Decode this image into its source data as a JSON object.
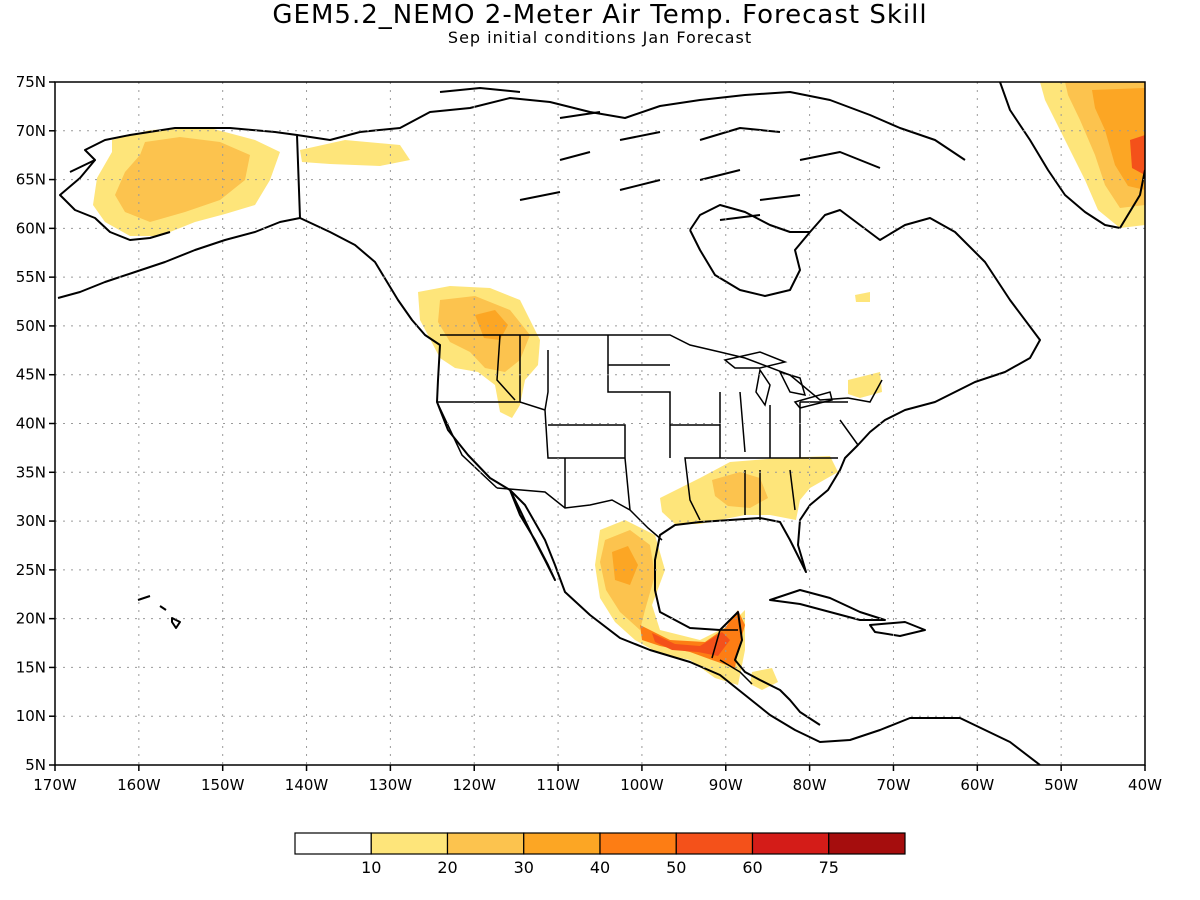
{
  "title": "GEM5.2_NEMO 2-Meter Air Temp. Forecast Skill",
  "subtitle": "Sep initial conditions  Jan Forecast",
  "lat_labels": [
    "75N",
    "70N",
    "65N",
    "60N",
    "55N",
    "50N",
    "45N",
    "40N",
    "35N",
    "30N",
    "25N",
    "20N",
    "15N",
    "10N",
    "5N"
  ],
  "lon_labels": [
    "170W",
    "160W",
    "150W",
    "140W",
    "130W",
    "120W",
    "110W",
    "100W",
    "90W",
    "80W",
    "70W",
    "60W",
    "50W",
    "40W"
  ],
  "colorbar": {
    "colors": [
      "#ffffff",
      "#fee57a",
      "#fcc34e",
      "#fca624",
      "#fd7d14",
      "#f4511a",
      "#d41c18",
      "#a50d0d"
    ],
    "labels": [
      "10",
      "20",
      "30",
      "40",
      "50",
      "60",
      "75"
    ]
  }
}
